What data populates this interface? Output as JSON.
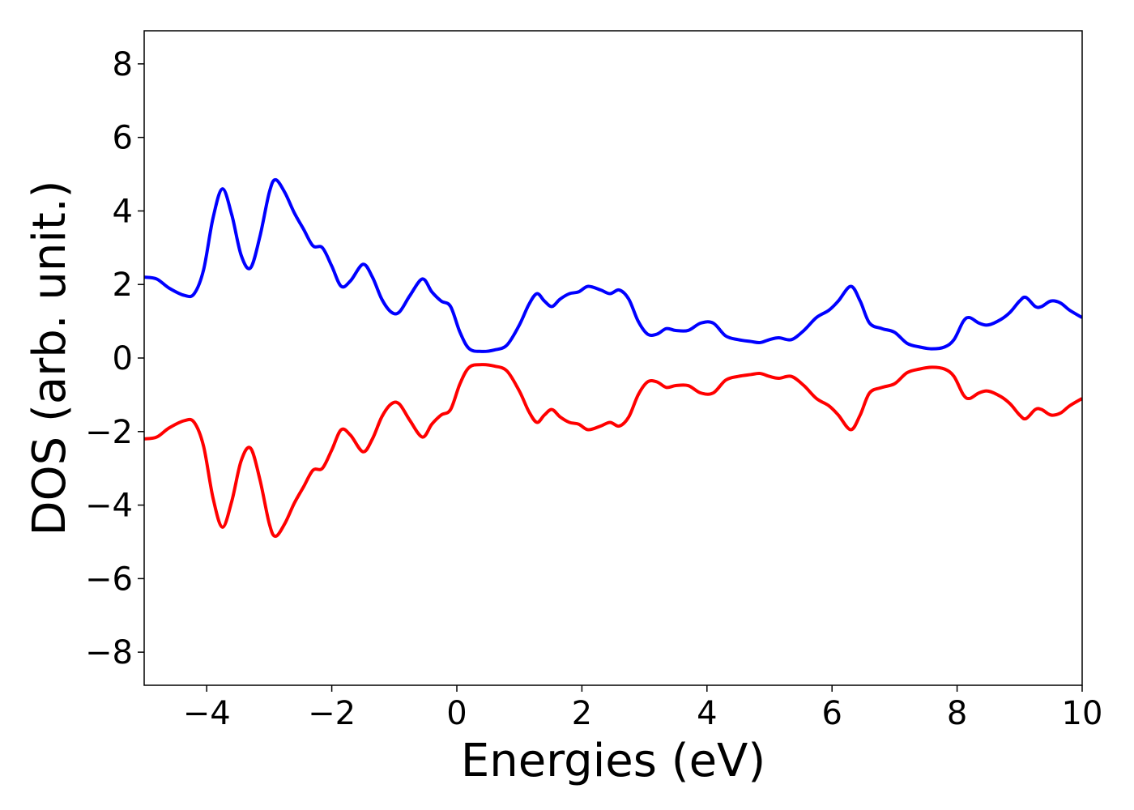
{
  "chart_data": {
    "type": "line",
    "xlabel": "Energies (eV)",
    "ylabel": "DOS (arb. unit.)",
    "xlim": [
      -5,
      10
    ],
    "ylim": [
      -8.9,
      8.9
    ],
    "xticks": [
      -4,
      -2,
      0,
      2,
      4,
      6,
      8,
      10
    ],
    "xtick_labels": [
      "−4",
      "−2",
      "0",
      "2",
      "4",
      "6",
      "8",
      "10"
    ],
    "yticks": [
      8,
      6,
      4,
      2,
      0,
      -2,
      -4,
      -6,
      -8
    ],
    "ytick_labels": [
      "8",
      "6",
      "4",
      "2",
      "0",
      "−2",
      "−4",
      "−6",
      "−8"
    ],
    "grid": false,
    "series": [
      {
        "color": "#0000ff",
        "points": [
          [
            -5.0,
            2.2
          ],
          [
            -4.8,
            2.15
          ],
          [
            -4.6,
            1.9
          ],
          [
            -4.35,
            1.7
          ],
          [
            -4.2,
            1.75
          ],
          [
            -4.05,
            2.4
          ],
          [
            -3.9,
            3.8
          ],
          [
            -3.75,
            4.6
          ],
          [
            -3.6,
            3.9
          ],
          [
            -3.45,
            2.8
          ],
          [
            -3.3,
            2.45
          ],
          [
            -3.15,
            3.3
          ],
          [
            -3.0,
            4.5
          ],
          [
            -2.9,
            4.85
          ],
          [
            -2.75,
            4.5
          ],
          [
            -2.6,
            3.95
          ],
          [
            -2.45,
            3.5
          ],
          [
            -2.3,
            3.05
          ],
          [
            -2.15,
            3.0
          ],
          [
            -2.0,
            2.5
          ],
          [
            -1.85,
            1.95
          ],
          [
            -1.7,
            2.1
          ],
          [
            -1.5,
            2.55
          ],
          [
            -1.35,
            2.2
          ],
          [
            -1.2,
            1.6
          ],
          [
            -1.05,
            1.25
          ],
          [
            -0.92,
            1.25
          ],
          [
            -0.75,
            1.7
          ],
          [
            -0.55,
            2.15
          ],
          [
            -0.4,
            1.8
          ],
          [
            -0.25,
            1.55
          ],
          [
            -0.1,
            1.4
          ],
          [
            0.05,
            0.7
          ],
          [
            0.2,
            0.25
          ],
          [
            0.4,
            0.18
          ],
          [
            0.6,
            0.22
          ],
          [
            0.8,
            0.35
          ],
          [
            1.0,
            0.9
          ],
          [
            1.15,
            1.45
          ],
          [
            1.28,
            1.75
          ],
          [
            1.4,
            1.55
          ],
          [
            1.52,
            1.4
          ],
          [
            1.65,
            1.6
          ],
          [
            1.8,
            1.75
          ],
          [
            1.95,
            1.8
          ],
          [
            2.1,
            1.95
          ],
          [
            2.3,
            1.85
          ],
          [
            2.45,
            1.75
          ],
          [
            2.6,
            1.85
          ],
          [
            2.75,
            1.6
          ],
          [
            2.9,
            1.0
          ],
          [
            3.05,
            0.65
          ],
          [
            3.2,
            0.65
          ],
          [
            3.35,
            0.8
          ],
          [
            3.5,
            0.75
          ],
          [
            3.7,
            0.75
          ],
          [
            3.9,
            0.95
          ],
          [
            4.1,
            0.95
          ],
          [
            4.3,
            0.6
          ],
          [
            4.5,
            0.5
          ],
          [
            4.7,
            0.45
          ],
          [
            4.85,
            0.42
          ],
          [
            5.0,
            0.5
          ],
          [
            5.15,
            0.55
          ],
          [
            5.35,
            0.5
          ],
          [
            5.55,
            0.75
          ],
          [
            5.75,
            1.1
          ],
          [
            5.95,
            1.3
          ],
          [
            6.1,
            1.55
          ],
          [
            6.3,
            1.95
          ],
          [
            6.45,
            1.55
          ],
          [
            6.6,
            0.95
          ],
          [
            6.8,
            0.8
          ],
          [
            7.0,
            0.7
          ],
          [
            7.2,
            0.4
          ],
          [
            7.4,
            0.3
          ],
          [
            7.6,
            0.25
          ],
          [
            7.8,
            0.3
          ],
          [
            7.95,
            0.5
          ],
          [
            8.1,
            1.0
          ],
          [
            8.2,
            1.1
          ],
          [
            8.35,
            0.95
          ],
          [
            8.5,
            0.9
          ],
          [
            8.7,
            1.05
          ],
          [
            8.85,
            1.25
          ],
          [
            9.0,
            1.55
          ],
          [
            9.1,
            1.65
          ],
          [
            9.25,
            1.4
          ],
          [
            9.35,
            1.4
          ],
          [
            9.5,
            1.55
          ],
          [
            9.65,
            1.5
          ],
          [
            9.8,
            1.3
          ],
          [
            10.0,
            1.1
          ]
        ]
      },
      {
        "color": "#ff0000",
        "mirror_of_series": 0,
        "points": []
      }
    ]
  }
}
